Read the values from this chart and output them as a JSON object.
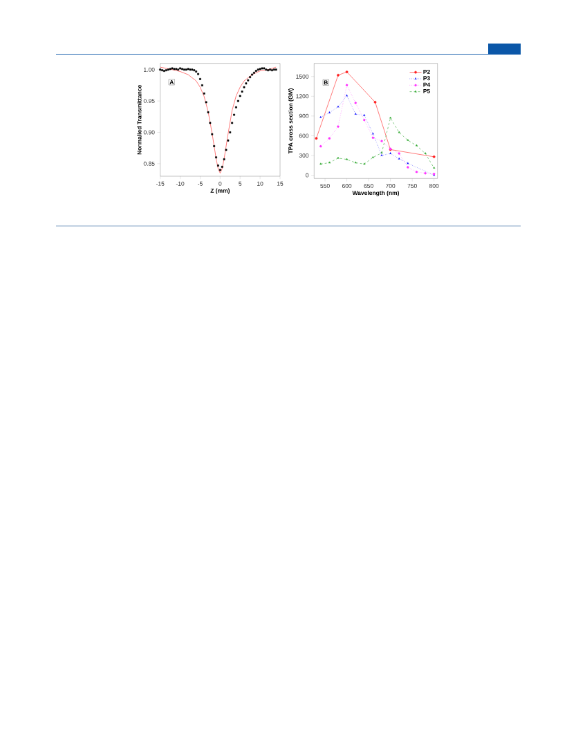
{
  "chart_data": [
    {
      "type": "scatter",
      "xlabel": "Z (mm)",
      "ylabel": "Normalied Transmittance",
      "annotations": [
        "A"
      ],
      "xlim": [
        -15,
        15
      ],
      "ylim": [
        0.83,
        1.01
      ],
      "xticks": [
        -15,
        -10,
        -5,
        0,
        5,
        10,
        15
      ],
      "yticks": [
        {
          "value": 0.85,
          "label": "0.85"
        },
        {
          "value": 0.9,
          "label": "0.90"
        },
        {
          "value": 0.95,
          "label": "0.95"
        },
        {
          "value": 1.0,
          "label": "1.00"
        }
      ],
      "legend": false,
      "series": [
        {
          "type": "scatter",
          "color": "#000000",
          "marker": "square",
          "x": [
            -15,
            -14.5,
            -14,
            -13.5,
            -13,
            -12.5,
            -12,
            -11.5,
            -11,
            -10.5,
            -10,
            -9.5,
            -9,
            -8.5,
            -8,
            -7.5,
            -7,
            -6.5,
            -6,
            -5.5,
            -5,
            -4.5,
            -4,
            -3.5,
            -3,
            -2.5,
            -2,
            -1.5,
            -1,
            -0.5,
            0,
            0.5,
            1,
            1.5,
            2,
            2.5,
            3,
            3.5,
            4,
            4.5,
            5,
            5.5,
            6,
            6.5,
            7,
            7.5,
            8,
            8.5,
            9,
            9.5,
            10,
            10.5,
            11,
            11.5,
            12,
            12.5,
            13,
            13.5,
            14
          ],
          "values": [
            1.0,
            0.999,
            0.998,
            0.999,
            1.0,
            1.001,
            1.002,
            1.001,
            1.001,
            1.0,
            1.002,
            1.001,
            1.0,
            1.0,
            1.001,
            1.0,
            1.0,
            0.999,
            0.997,
            0.993,
            0.985,
            0.975,
            0.962,
            0.948,
            0.932,
            0.915,
            0.897,
            0.878,
            0.86,
            0.847,
            0.84,
            0.845,
            0.857,
            0.872,
            0.887,
            0.9,
            0.915,
            0.928,
            0.94,
            0.95,
            0.958,
            0.965,
            0.972,
            0.978,
            0.983,
            0.988,
            0.992,
            0.995,
            0.998,
            1.0,
            1.001,
            1.002,
            1.002,
            1.0,
            0.999,
            1.0,
            0.999,
            1.0,
            1.0
          ]
        },
        {
          "type": "line",
          "color": "#ff2020",
          "marker": "none",
          "line_style": "solid",
          "x": [
            -15,
            -12,
            -10,
            -8,
            -6,
            -5,
            -4,
            -3,
            -2,
            -1,
            -0.5,
            0,
            0.5,
            1,
            2,
            3,
            4,
            5,
            6,
            8,
            10,
            12,
            14
          ],
          "values": [
            1.004,
            1.0,
            0.997,
            0.992,
            0.982,
            0.972,
            0.957,
            0.933,
            0.898,
            0.858,
            0.842,
            0.835,
            0.842,
            0.858,
            0.898,
            0.935,
            0.958,
            0.972,
            0.982,
            0.992,
            0.998,
            1.0,
            1.004
          ]
        }
      ]
    },
    {
      "type": "line",
      "xlabel": "Wavelength (nm)",
      "ylabel": "TPA cross section (GM)",
      "annotations": [
        "B"
      ],
      "xlim": [
        525,
        808
      ],
      "ylim": [
        -50,
        1700
      ],
      "xticks": [
        550,
        600,
        650,
        700,
        750,
        800
      ],
      "yticks": [
        0,
        300,
        600,
        900,
        1200,
        1500
      ],
      "legend": "top right",
      "series": [
        {
          "name": "P2",
          "color": "#ff2020",
          "marker": "circle",
          "line_style": "solid",
          "x": [
            530,
            580,
            600,
            665,
            700,
            800
          ],
          "values": [
            560,
            1520,
            1570,
            1110,
            390,
            280
          ]
        },
        {
          "name": "P3",
          "color": "#0000ff",
          "marker": "triangle",
          "line_style": "dotted",
          "x": [
            540,
            560,
            580,
            600,
            620,
            640,
            660,
            680,
            700,
            720,
            740,
            800
          ],
          "values": [
            880,
            950,
            1040,
            1210,
            930,
            910,
            630,
            300,
            330,
            250,
            180,
            0
          ]
        },
        {
          "name": "P4",
          "color": "#ff33ff",
          "marker": "circle",
          "line_style": "dotted",
          "x": [
            540,
            560,
            580,
            600,
            620,
            640,
            660,
            680,
            700,
            720,
            740,
            760,
            780,
            800
          ],
          "values": [
            440,
            560,
            740,
            1370,
            1100,
            840,
            570,
            520,
            400,
            330,
            120,
            50,
            30,
            20
          ]
        },
        {
          "name": "P5",
          "color": "#33aa33",
          "marker": "triangle",
          "line_style": "dashed",
          "x": [
            540,
            560,
            580,
            600,
            620,
            640,
            660,
            680,
            700,
            720,
            740,
            760,
            780,
            800
          ],
          "values": [
            170,
            190,
            260,
            240,
            190,
            170,
            270,
            340,
            870,
            650,
            530,
            450,
            330,
            110
          ]
        }
      ]
    }
  ]
}
